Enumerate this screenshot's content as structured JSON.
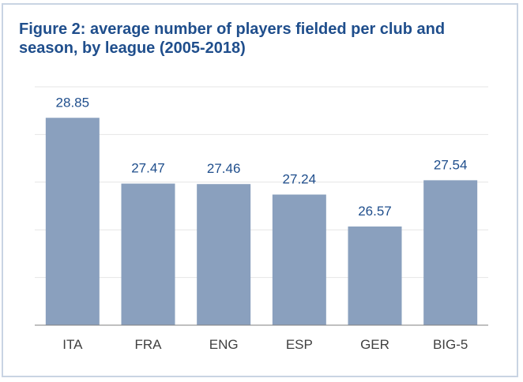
{
  "colors": {
    "frame_border": "#c9d4e3",
    "title": "#1f4e8c",
    "bar": "#8aa0be",
    "value_label": "#1f4e8c",
    "axis_label": "#404040",
    "gridline": "#e6e6e6",
    "baseline": "#808080"
  },
  "chart_data": {
    "type": "bar",
    "title": "Figure 2: average number of players fielded per club and season, by league (2005-2018)",
    "xlabel": "",
    "ylabel": "",
    "categories": [
      "ITA",
      "FRA",
      "ENG",
      "ESP",
      "GER",
      "BIG-5"
    ],
    "values": [
      28.85,
      27.47,
      27.46,
      27.24,
      26.57,
      27.54
    ],
    "value_labels": [
      "28.85",
      "27.47",
      "27.46",
      "27.24",
      "26.57",
      "27.54"
    ],
    "ylim": [
      24.5,
      29.5
    ],
    "gridlines": [
      24.5,
      25.5,
      26.5,
      27.5,
      28.5,
      29.5
    ],
    "grid": true,
    "y_tick_labels_shown": false,
    "legend": "none"
  }
}
